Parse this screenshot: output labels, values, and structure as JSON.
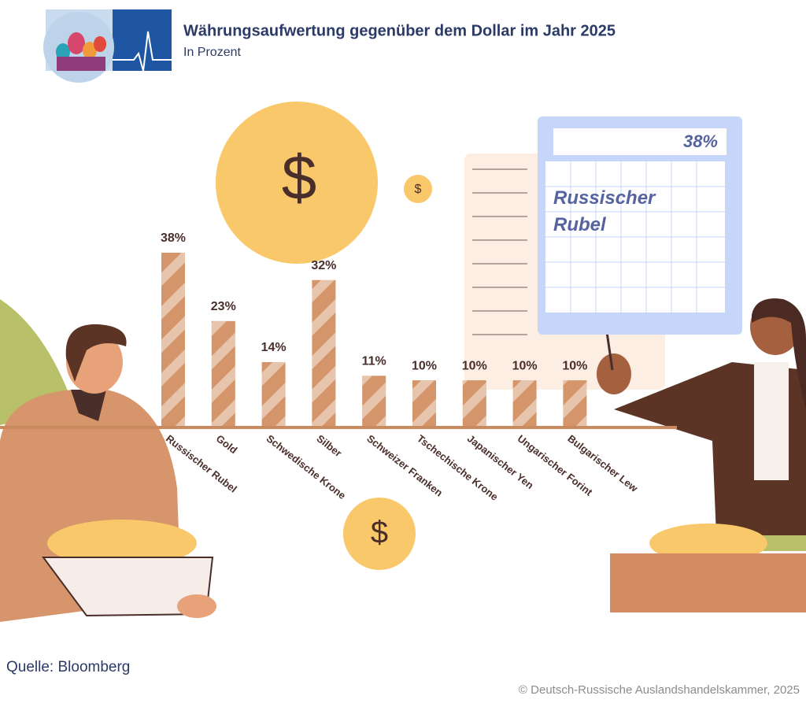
{
  "chart_data": {
    "type": "bar",
    "title": "Währungsaufwertung gegenüber dem Dollar im Jahr 2025",
    "subtitle": "In Prozent",
    "categories": [
      "Russischer Rubel",
      "Gold",
      "Schwedische Krone",
      "Silber",
      "Schweizer Franken",
      "Tschechische Krone",
      "Japanischer Yen",
      "Ungarischer Forint",
      "Bulgarischer Lew"
    ],
    "values": [
      38,
      23,
      14,
      32,
      11,
      10,
      10,
      10,
      10
    ],
    "value_labels": [
      "38%",
      "23%",
      "14%",
      "32%",
      "11%",
      "10%",
      "10%",
      "10%",
      "10%"
    ],
    "color": "#d4956a",
    "source": "Quelle: Bloomberg",
    "copyright": "© Deutsch-Russische Auslandshandelskammer, 2025"
  }
}
